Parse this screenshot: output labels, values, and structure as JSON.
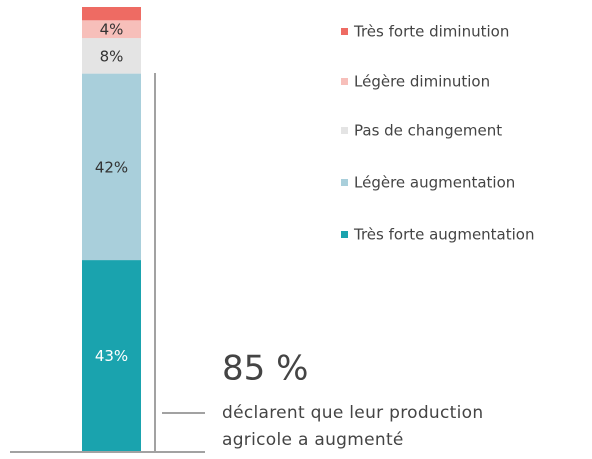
{
  "chart_data": {
    "type": "stacked_bar",
    "categories": [
      null
    ],
    "series": [
      {
        "name": "Très forte augmentation",
        "color": "#1aa3ae",
        "values": [
          43
        ],
        "value_labels": [
          "43%"
        ]
      },
      {
        "name": "Légère augmentation",
        "color": "#a9cfdb",
        "values": [
          42
        ],
        "value_labels": [
          "42%"
        ]
      },
      {
        "name": "Pas de changement",
        "color": "#e4e4e4",
        "values": [
          8
        ],
        "value_labels": [
          "8%"
        ]
      },
      {
        "name": "Légère diminution",
        "color": "#f7bfba",
        "values": [
          4
        ],
        "value_labels": [
          "4%"
        ]
      },
      {
        "name": "Très forte diminution",
        "color": "#ee6b63",
        "values": [
          3
        ],
        "value_labels": [
          null
        ]
      }
    ],
    "ylim": [
      0,
      100
    ],
    "annotation": {
      "headline": "85 %",
      "lines": [
        "déclarent que leur production",
        "agricole a augmenté"
      ]
    }
  }
}
